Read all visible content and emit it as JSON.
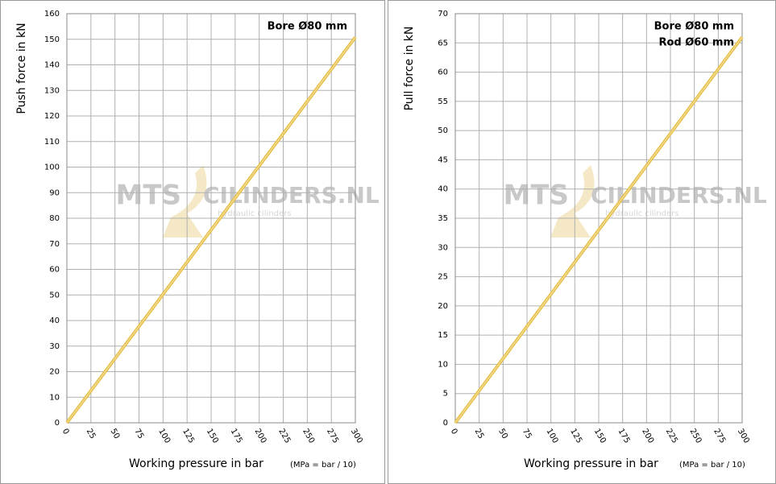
{
  "chart_data": [
    {
      "type": "line",
      "ylabel": "Push force in kN",
      "xlabel": "Working pressure in bar",
      "xlabel_note": "(MPa = bar / 10)",
      "annotations": [
        "Bore Ø80 mm"
      ],
      "watermark": [
        "MTS",
        "CILINDERS.NL",
        "hydraulic cilinders"
      ],
      "x": [
        0,
        50,
        100,
        150,
        200,
        250,
        300
      ],
      "series": [
        {
          "name": "Push force",
          "color": "#e6c04e",
          "values": [
            0,
            25.1,
            50.3,
            75.4,
            100.5,
            125.7,
            150.8
          ]
        }
      ],
      "xlim": [
        0,
        300
      ],
      "xticks": [
        0,
        25,
        50,
        75,
        100,
        125,
        150,
        175,
        200,
        225,
        250,
        275,
        300
      ],
      "ylim": [
        0,
        160
      ],
      "yticks": [
        0,
        10,
        20,
        30,
        40,
        50,
        60,
        70,
        80,
        90,
        100,
        110,
        120,
        130,
        140,
        150,
        160
      ],
      "grid": true
    },
    {
      "type": "line",
      "ylabel": "Pull force in kN",
      "xlabel": "Working pressure in bar",
      "xlabel_note": "(MPa = bar / 10)",
      "annotations": [
        "Bore Ø80 mm",
        "Rod Ø60 mm"
      ],
      "watermark": [
        "MTS",
        "CILINDERS.NL",
        "hydraulic cilinders"
      ],
      "x": [
        0,
        50,
        100,
        150,
        200,
        250,
        300
      ],
      "series": [
        {
          "name": "Pull force",
          "color": "#e6c04e",
          "values": [
            0,
            11,
            22,
            33,
            44,
            55,
            66
          ]
        }
      ],
      "xlim": [
        0,
        300
      ],
      "xticks": [
        0,
        25,
        50,
        75,
        100,
        125,
        150,
        175,
        200,
        225,
        250,
        275,
        300
      ],
      "ylim": [
        0,
        70
      ],
      "yticks": [
        0,
        5,
        10,
        15,
        20,
        25,
        30,
        35,
        40,
        45,
        50,
        55,
        60,
        65,
        70
      ],
      "grid": true
    }
  ]
}
